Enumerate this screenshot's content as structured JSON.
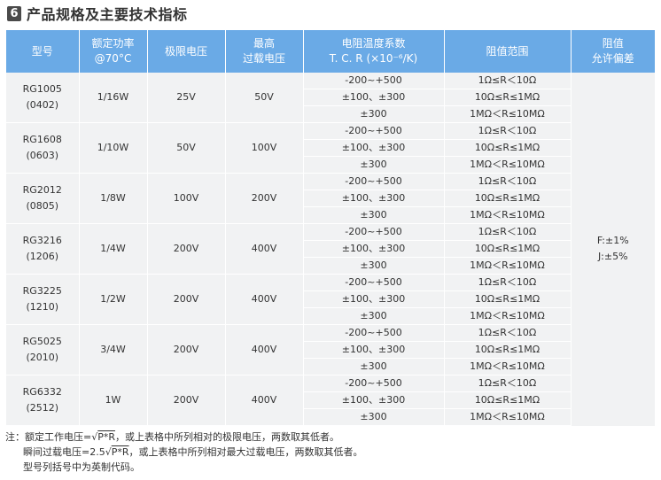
{
  "heading": {
    "number": "6",
    "title": "产品规格及主要技术指标"
  },
  "table": {
    "headers": {
      "model": "型号",
      "power_line1": "额定功率",
      "power_line2": "@70°C",
      "limit_voltage": "极限电压",
      "overload_line1": "最高",
      "overload_line2": "过载电压",
      "tcr_line1": "电阻温度系数",
      "tcr_line2": "T. C. R (×10⁻⁶/K)",
      "range": "阻值范围",
      "tol_line1": "阻值",
      "tol_line2": "允许偏差"
    },
    "rows": [
      {
        "model": "RG1005",
        "size": "(0402)",
        "power": "1/16W",
        "limit_voltage": "25V",
        "overload": "50V",
        "tcr": [
          "-200~+500",
          "±100、±300",
          "±300"
        ],
        "range": [
          "1Ω≤R＜10Ω",
          "10Ω≤R≤1MΩ",
          "1MΩ＜R≤10MΩ"
        ]
      },
      {
        "model": "RG1608",
        "size": "(0603)",
        "power": "1/10W",
        "limit_voltage": "50V",
        "overload": "100V",
        "tcr": [
          "-200~+500",
          "±100、±300",
          "±300"
        ],
        "range": [
          "1Ω≤R＜10Ω",
          "10Ω≤R≤1MΩ",
          "1MΩ＜R≤10MΩ"
        ]
      },
      {
        "model": "RG2012",
        "size": "(0805)",
        "power": "1/8W",
        "limit_voltage": "100V",
        "overload": "200V",
        "tcr": [
          "-200~+500",
          "±100、±300",
          "±300"
        ],
        "range": [
          "1Ω≤R＜10Ω",
          "10Ω≤R≤1MΩ",
          "1MΩ＜R≤10MΩ"
        ]
      },
      {
        "model": "RG3216",
        "size": "(1206)",
        "power": "1/4W",
        "limit_voltage": "200V",
        "overload": "400V",
        "tcr": [
          "-200~+500",
          "±100、±300",
          "±300"
        ],
        "range": [
          "1Ω≤R＜10Ω",
          "10Ω≤R≤1MΩ",
          "1MΩ＜R≤10MΩ"
        ]
      },
      {
        "model": "RG3225",
        "size": "(1210)",
        "power": "1/2W",
        "limit_voltage": "200V",
        "overload": "400V",
        "tcr": [
          "-200~+500",
          "±100、±300",
          "±300"
        ],
        "range": [
          "1Ω≤R＜10Ω",
          "10Ω≤R≤1MΩ",
          "1MΩ＜R≤10MΩ"
        ]
      },
      {
        "model": "RG5025",
        "size": "(2010)",
        "power": "3/4W",
        "limit_voltage": "200V",
        "overload": "400V",
        "tcr": [
          "-200~+500",
          "±100、±300",
          "±300"
        ],
        "range": [
          "1Ω≤R＜10Ω",
          "10Ω≤R≤1MΩ",
          "1MΩ＜R≤10MΩ"
        ]
      },
      {
        "model": "RG6332",
        "size": "(2512)",
        "power": "1W",
        "limit_voltage": "200V",
        "overload": "400V",
        "tcr": [
          "-200~+500",
          "±100、±300",
          "±300"
        ],
        "range": [
          "1Ω≤R＜10Ω",
          "10Ω≤R≤1MΩ",
          "1MΩ＜R≤10MΩ"
        ]
      }
    ],
    "tolerance": [
      "F:±1%",
      "J:±5%"
    ]
  },
  "notes": {
    "prefix": "注：",
    "line1_a": "额定工作电压=√",
    "line1_b": "P*R",
    "line1_c": "，或上表格中所列相对的极限电压，两数取其低者。",
    "line2_a": "瞬间过载电压=2.5√",
    "line2_b": "P*R",
    "line2_c": "，或上表格中所列相对最大过载电压，两数取其低者。",
    "line3": "型号列括号中为英制代码。"
  },
  "colors": {
    "header_bg": "#6aaae6",
    "cell_bg": "#f1f2f3",
    "badge_bg": "#4a4a4a"
  }
}
